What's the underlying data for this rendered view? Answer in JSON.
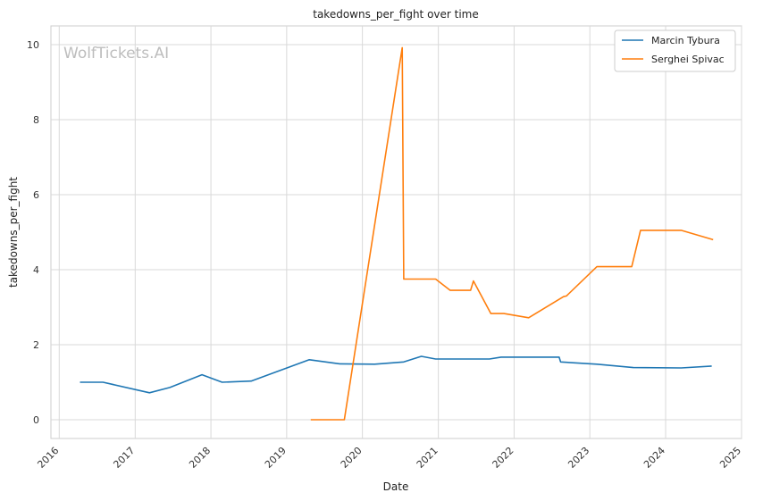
{
  "chart_data": {
    "type": "line",
    "title": "takedowns_per_fight over time",
    "xlabel": "Date",
    "ylabel": "takedowns_per_fight",
    "watermark": "WolfTickets.AI",
    "x_ticks": [
      "2016",
      "2017",
      "2018",
      "2019",
      "2020",
      "2021",
      "2022",
      "2023",
      "2024",
      "2025"
    ],
    "y_ticks": [
      "0",
      "2",
      "4",
      "6",
      "8",
      "10"
    ],
    "xlim": [
      "2015-11-22",
      "2025-01-01"
    ],
    "ylim": [
      -0.5,
      10.5
    ],
    "grid": true,
    "legend_position": "top-right",
    "series": [
      {
        "name": "Marcin Tybura",
        "color": "#1f77b4",
        "points": [
          [
            "2016-04-10",
            1.0
          ],
          [
            "2016-07-30",
            1.0
          ],
          [
            "2017-03-11",
            0.72
          ],
          [
            "2017-06-17",
            0.86
          ],
          [
            "2017-11-19",
            1.2
          ],
          [
            "2018-02-24",
            1.0
          ],
          [
            "2018-07-14",
            1.03
          ],
          [
            "2019-04-20",
            1.6
          ],
          [
            "2019-09-14",
            1.49
          ],
          [
            "2020-02-29",
            1.48
          ],
          [
            "2020-07-18",
            1.54
          ],
          [
            "2020-10-11",
            1.69
          ],
          [
            "2020-12-19",
            1.62
          ],
          [
            "2021-09-04",
            1.62
          ],
          [
            "2021-10-30",
            1.67
          ],
          [
            "2022-08-06",
            1.67
          ],
          [
            "2022-08-13",
            1.54
          ],
          [
            "2023-02-04",
            1.48
          ],
          [
            "2023-07-29",
            1.39
          ],
          [
            "2024-03-16",
            1.38
          ],
          [
            "2024-08-10",
            1.43
          ]
        ]
      },
      {
        "name": "Serghei Spivac",
        "color": "#ff7f0e",
        "points": [
          [
            "2019-04-27",
            0.0
          ],
          [
            "2019-10-06",
            0.0
          ],
          [
            "2020-07-11",
            9.92
          ],
          [
            "2020-07-18",
            3.75
          ],
          [
            "2020-12-19",
            3.75
          ],
          [
            "2021-02-27",
            3.45
          ],
          [
            "2021-06-05",
            3.45
          ],
          [
            "2021-06-19",
            3.7
          ],
          [
            "2021-09-11",
            2.83
          ],
          [
            "2021-11-13",
            2.83
          ],
          [
            "2022-03-12",
            2.72
          ],
          [
            "2022-08-27",
            3.28
          ],
          [
            "2022-09-10",
            3.3
          ],
          [
            "2023-02-04",
            4.08
          ],
          [
            "2023-07-22",
            4.08
          ],
          [
            "2023-09-02",
            5.05
          ],
          [
            "2024-03-16",
            5.05
          ],
          [
            "2024-08-17",
            4.8
          ]
        ]
      }
    ]
  }
}
